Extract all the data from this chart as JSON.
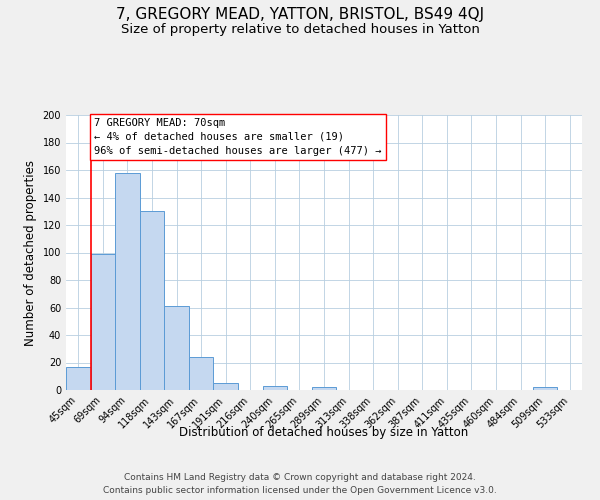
{
  "title": "7, GREGORY MEAD, YATTON, BRISTOL, BS49 4QJ",
  "subtitle": "Size of property relative to detached houses in Yatton",
  "xlabel": "Distribution of detached houses by size in Yatton",
  "ylabel": "Number of detached properties",
  "footer_line1": "Contains HM Land Registry data © Crown copyright and database right 2024.",
  "footer_line2": "Contains public sector information licensed under the Open Government Licence v3.0.",
  "bin_labels": [
    "45sqm",
    "69sqm",
    "94sqm",
    "118sqm",
    "143sqm",
    "167sqm",
    "191sqm",
    "216sqm",
    "240sqm",
    "265sqm",
    "289sqm",
    "313sqm",
    "338sqm",
    "362sqm",
    "387sqm",
    "411sqm",
    "435sqm",
    "460sqm",
    "484sqm",
    "509sqm",
    "533sqm"
  ],
  "bar_values": [
    17,
    99,
    158,
    130,
    61,
    24,
    5,
    0,
    3,
    0,
    2,
    0,
    0,
    0,
    0,
    0,
    0,
    0,
    0,
    2,
    0
  ],
  "bar_color": "#c5d8f0",
  "bar_edge_color": "#5b9bd5",
  "ylim": [
    0,
    200
  ],
  "yticks": [
    0,
    20,
    40,
    60,
    80,
    100,
    120,
    140,
    160,
    180,
    200
  ],
  "property_line_bin_index": 1,
  "property_line_label": "7 GREGORY MEAD: 70sqm",
  "annotation_smaller": "← 4% of detached houses are smaller (19)",
  "annotation_larger": "96% of semi-detached houses are larger (477) →",
  "background_color": "#f0f0f0",
  "plot_background_color": "#ffffff",
  "grid_color": "#b8cfe0",
  "title_fontsize": 11,
  "subtitle_fontsize": 9.5,
  "axis_label_fontsize": 8.5,
  "tick_fontsize": 7,
  "annotation_fontsize": 7.5,
  "footer_fontsize": 6.5
}
